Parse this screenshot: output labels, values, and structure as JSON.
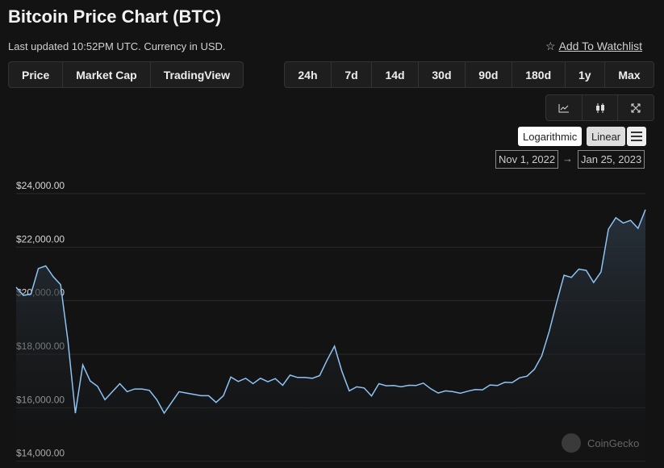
{
  "header": {
    "title": "Bitcoin Price Chart (BTC)",
    "subtitle": "Last updated 10:52PM UTC. Currency in USD.",
    "watchlist": "Add To Watchlist"
  },
  "tabs": [
    "Price",
    "Market Cap",
    "TradingView"
  ],
  "ranges": [
    "24h",
    "7d",
    "14d",
    "30d",
    "90d",
    "180d",
    "1y",
    "Max"
  ],
  "scale_buttons": [
    "Logarithmic",
    "Linear"
  ],
  "date_range": {
    "from": "Nov 1, 2022",
    "to": "Jan 25, 2023"
  },
  "watermark": "CoinGecko",
  "chart_data": {
    "type": "line",
    "color": "#8dc3f5",
    "grid": true,
    "x": [
      "2022-11-01",
      "2022-11-02",
      "2022-11-03",
      "2022-11-04",
      "2022-11-05",
      "2022-11-06",
      "2022-11-07",
      "2022-11-08",
      "2022-11-09",
      "2022-11-10",
      "2022-11-11",
      "2022-11-12",
      "2022-11-13",
      "2022-11-14",
      "2022-11-15",
      "2022-11-16",
      "2022-11-17",
      "2022-11-18",
      "2022-11-19",
      "2022-11-20",
      "2022-11-21",
      "2022-11-22",
      "2022-11-23",
      "2022-11-24",
      "2022-11-25",
      "2022-11-26",
      "2022-11-27",
      "2022-11-28",
      "2022-11-29",
      "2022-11-30",
      "2022-12-01",
      "2022-12-02",
      "2022-12-03",
      "2022-12-04",
      "2022-12-05",
      "2022-12-06",
      "2022-12-07",
      "2022-12-08",
      "2022-12-09",
      "2022-12-10",
      "2022-12-11",
      "2022-12-12",
      "2022-12-13",
      "2022-12-14",
      "2022-12-15",
      "2022-12-16",
      "2022-12-17",
      "2022-12-18",
      "2022-12-19",
      "2022-12-20",
      "2022-12-21",
      "2022-12-22",
      "2022-12-23",
      "2022-12-24",
      "2022-12-25",
      "2022-12-26",
      "2022-12-27",
      "2022-12-28",
      "2022-12-29",
      "2022-12-30",
      "2022-12-31",
      "2023-01-01",
      "2023-01-02",
      "2023-01-03",
      "2023-01-04",
      "2023-01-05",
      "2023-01-06",
      "2023-01-07",
      "2023-01-08",
      "2023-01-09",
      "2023-01-10",
      "2023-01-11",
      "2023-01-12",
      "2023-01-13",
      "2023-01-14",
      "2023-01-15",
      "2023-01-16",
      "2023-01-17",
      "2023-01-18",
      "2023-01-19",
      "2023-01-20",
      "2023-01-21",
      "2023-01-22",
      "2023-01-23",
      "2023-01-24",
      "2023-01-25"
    ],
    "values": [
      20500,
      20200,
      20250,
      21200,
      21300,
      20900,
      20600,
      18500,
      15800,
      17600,
      17000,
      16800,
      16300,
      16600,
      16900,
      16600,
      16700,
      16700,
      16650,
      16300,
      15800,
      16200,
      16600,
      16550,
      16500,
      16450,
      16450,
      16200,
      16450,
      17150,
      16980,
      17100,
      16900,
      17100,
      16970,
      17090,
      16840,
      17220,
      17130,
      17130,
      17100,
      17200,
      17780,
      18300,
      17360,
      16630,
      16780,
      16740,
      16440,
      16900,
      16820,
      16830,
      16780,
      16840,
      16830,
      16920,
      16710,
      16550,
      16630,
      16600,
      16540,
      16620,
      16680,
      16670,
      16850,
      16830,
      16950,
      16940,
      17120,
      17180,
      17440,
      17940,
      18850,
      19930,
      20950,
      20870,
      21180,
      21130,
      20680,
      21070,
      22670,
      23100,
      22900,
      23000,
      22700,
      23400
    ],
    "ylim": [
      13900,
      24600
    ],
    "yticks": [
      {
        "value": 14000,
        "label": "$14,000.00"
      },
      {
        "value": 16000,
        "label": "$16,000.00"
      },
      {
        "value": 18000,
        "label": "$18,000.00"
      },
      {
        "value": 20000,
        "label": "$20,000.00"
      },
      {
        "value": 22000,
        "label": "$22,000.00"
      },
      {
        "value": 24000,
        "label": "$24,000.00"
      }
    ]
  }
}
